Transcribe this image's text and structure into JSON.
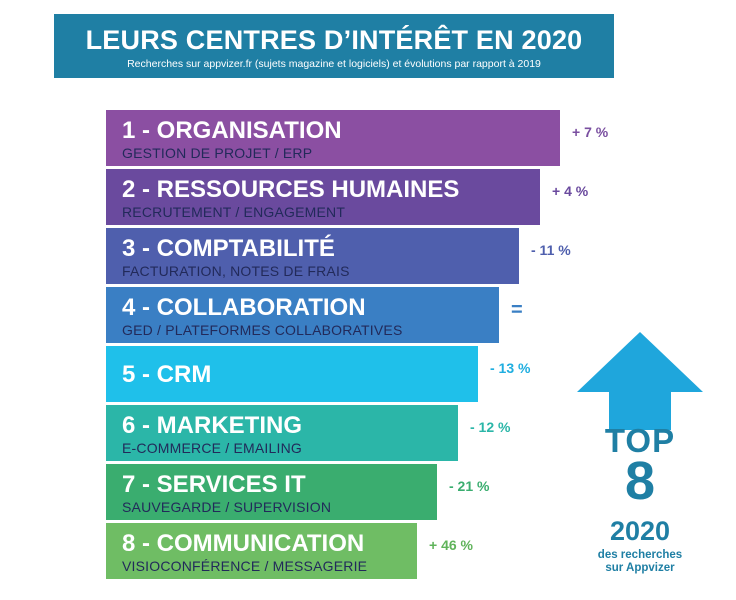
{
  "header": {
    "title": "LEURS CENTRES D’INTÉRÊT EN 2020",
    "subtitle": "Recherches sur appvizer.fr (sujets magazine et logiciels) et évolutions par rapport à 2019"
  },
  "chart_data": {
    "type": "bar",
    "orientation": "horizontal",
    "value_kind": "rank",
    "categories": [
      "1 - ORGANISATION",
      "2 - RESSOURCES HUMAINES",
      "3 - COMPTABILITÉ",
      "4 - COLLABORATION",
      "5 - CRM",
      "6 - MARKETING",
      "7 - SERVICES IT",
      "8 - COMMUNICATION"
    ],
    "ranks": [
      1,
      2,
      3,
      4,
      5,
      6,
      7,
      8
    ],
    "subtitles": [
      "GESTION DE PROJET / ERP",
      "RECRUTEMENT / ENGAGEMENT",
      "FACTURATION, NOTES DE FRAIS",
      "GED / PLATEFORMES COLLABORATIVES",
      "",
      "E-COMMERCE / EMAILING",
      "SAUVEGARDE / SUPERVISION",
      "VISIOCONFÉRENCE / MESSAGERIE"
    ],
    "changes": [
      "+ 7 %",
      "+ 4 %",
      "- 11 %",
      "=",
      "- 13 %",
      "- 12 %",
      "- 21 %",
      "+ 46 %"
    ],
    "colors": [
      "#8b4fa2",
      "#6a4a9e",
      "#4f5fad",
      "#3a7fc4",
      "#1fc0ea",
      "#2bb6a8",
      "#3aad6f",
      "#6fbd64"
    ],
    "change_colors": [
      "#7a4fa0",
      "#6a4a9e",
      "#4f5fad",
      "#3a7fc4",
      "#1faee0",
      "#2bb6a8",
      "#3aad6f",
      "#5fb35a"
    ]
  },
  "top_badge": {
    "word": "TOP",
    "number": "8",
    "year": "2020",
    "caption_line1": "des recherches",
    "caption_line2": "sur Appvizer"
  }
}
